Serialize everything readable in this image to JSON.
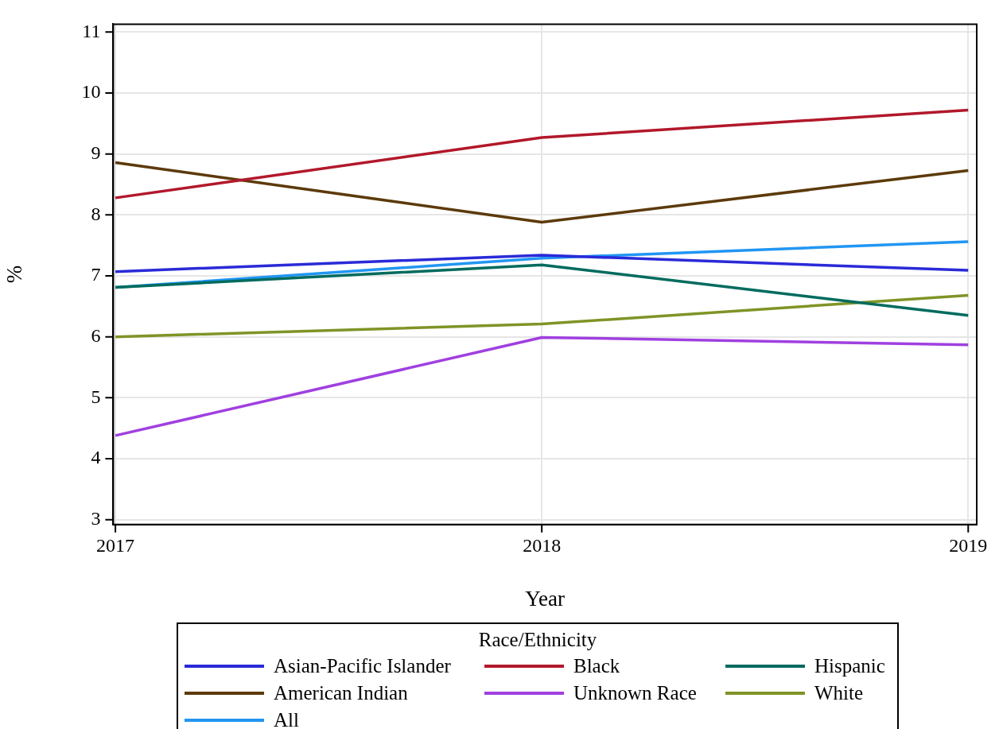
{
  "chart_data": {
    "type": "line",
    "xlabel": "Year",
    "ylabel": "%",
    "legend_title": "Race/Ethnicity",
    "x": [
      2017,
      2018,
      2019
    ],
    "xlim": [
      2016.995,
      2019.02
    ],
    "xticks": [
      2017,
      2018,
      2019
    ],
    "ylim": [
      2.92,
      11.13
    ],
    "yticks": [
      3,
      4,
      5,
      6,
      7,
      8,
      9,
      10,
      11
    ],
    "grid": true,
    "legend": "bottom",
    "marker": "none",
    "line_style": "solid",
    "series": [
      {
        "name": "Asian-Pacific Islander",
        "color": "#2a2ad8",
        "values": [
          7.07,
          7.34,
          7.09
        ]
      },
      {
        "name": "Black",
        "color": "#b2182b",
        "values": [
          8.28,
          9.27,
          9.72
        ]
      },
      {
        "name": "Hispanic",
        "color": "#006b5e",
        "values": [
          6.81,
          7.18,
          6.35
        ]
      },
      {
        "name": "American Indian",
        "color": "#5c3a0a",
        "values": [
          8.86,
          7.88,
          8.73
        ]
      },
      {
        "name": "Unknown Race",
        "color": "#a040e0",
        "values": [
          4.38,
          5.99,
          5.87
        ]
      },
      {
        "name": "White",
        "color": "#7f9426",
        "values": [
          6.0,
          6.21,
          6.68
        ]
      },
      {
        "name": "All",
        "color": "#2196f3",
        "values": [
          6.81,
          7.29,
          7.56
        ]
      }
    ]
  }
}
